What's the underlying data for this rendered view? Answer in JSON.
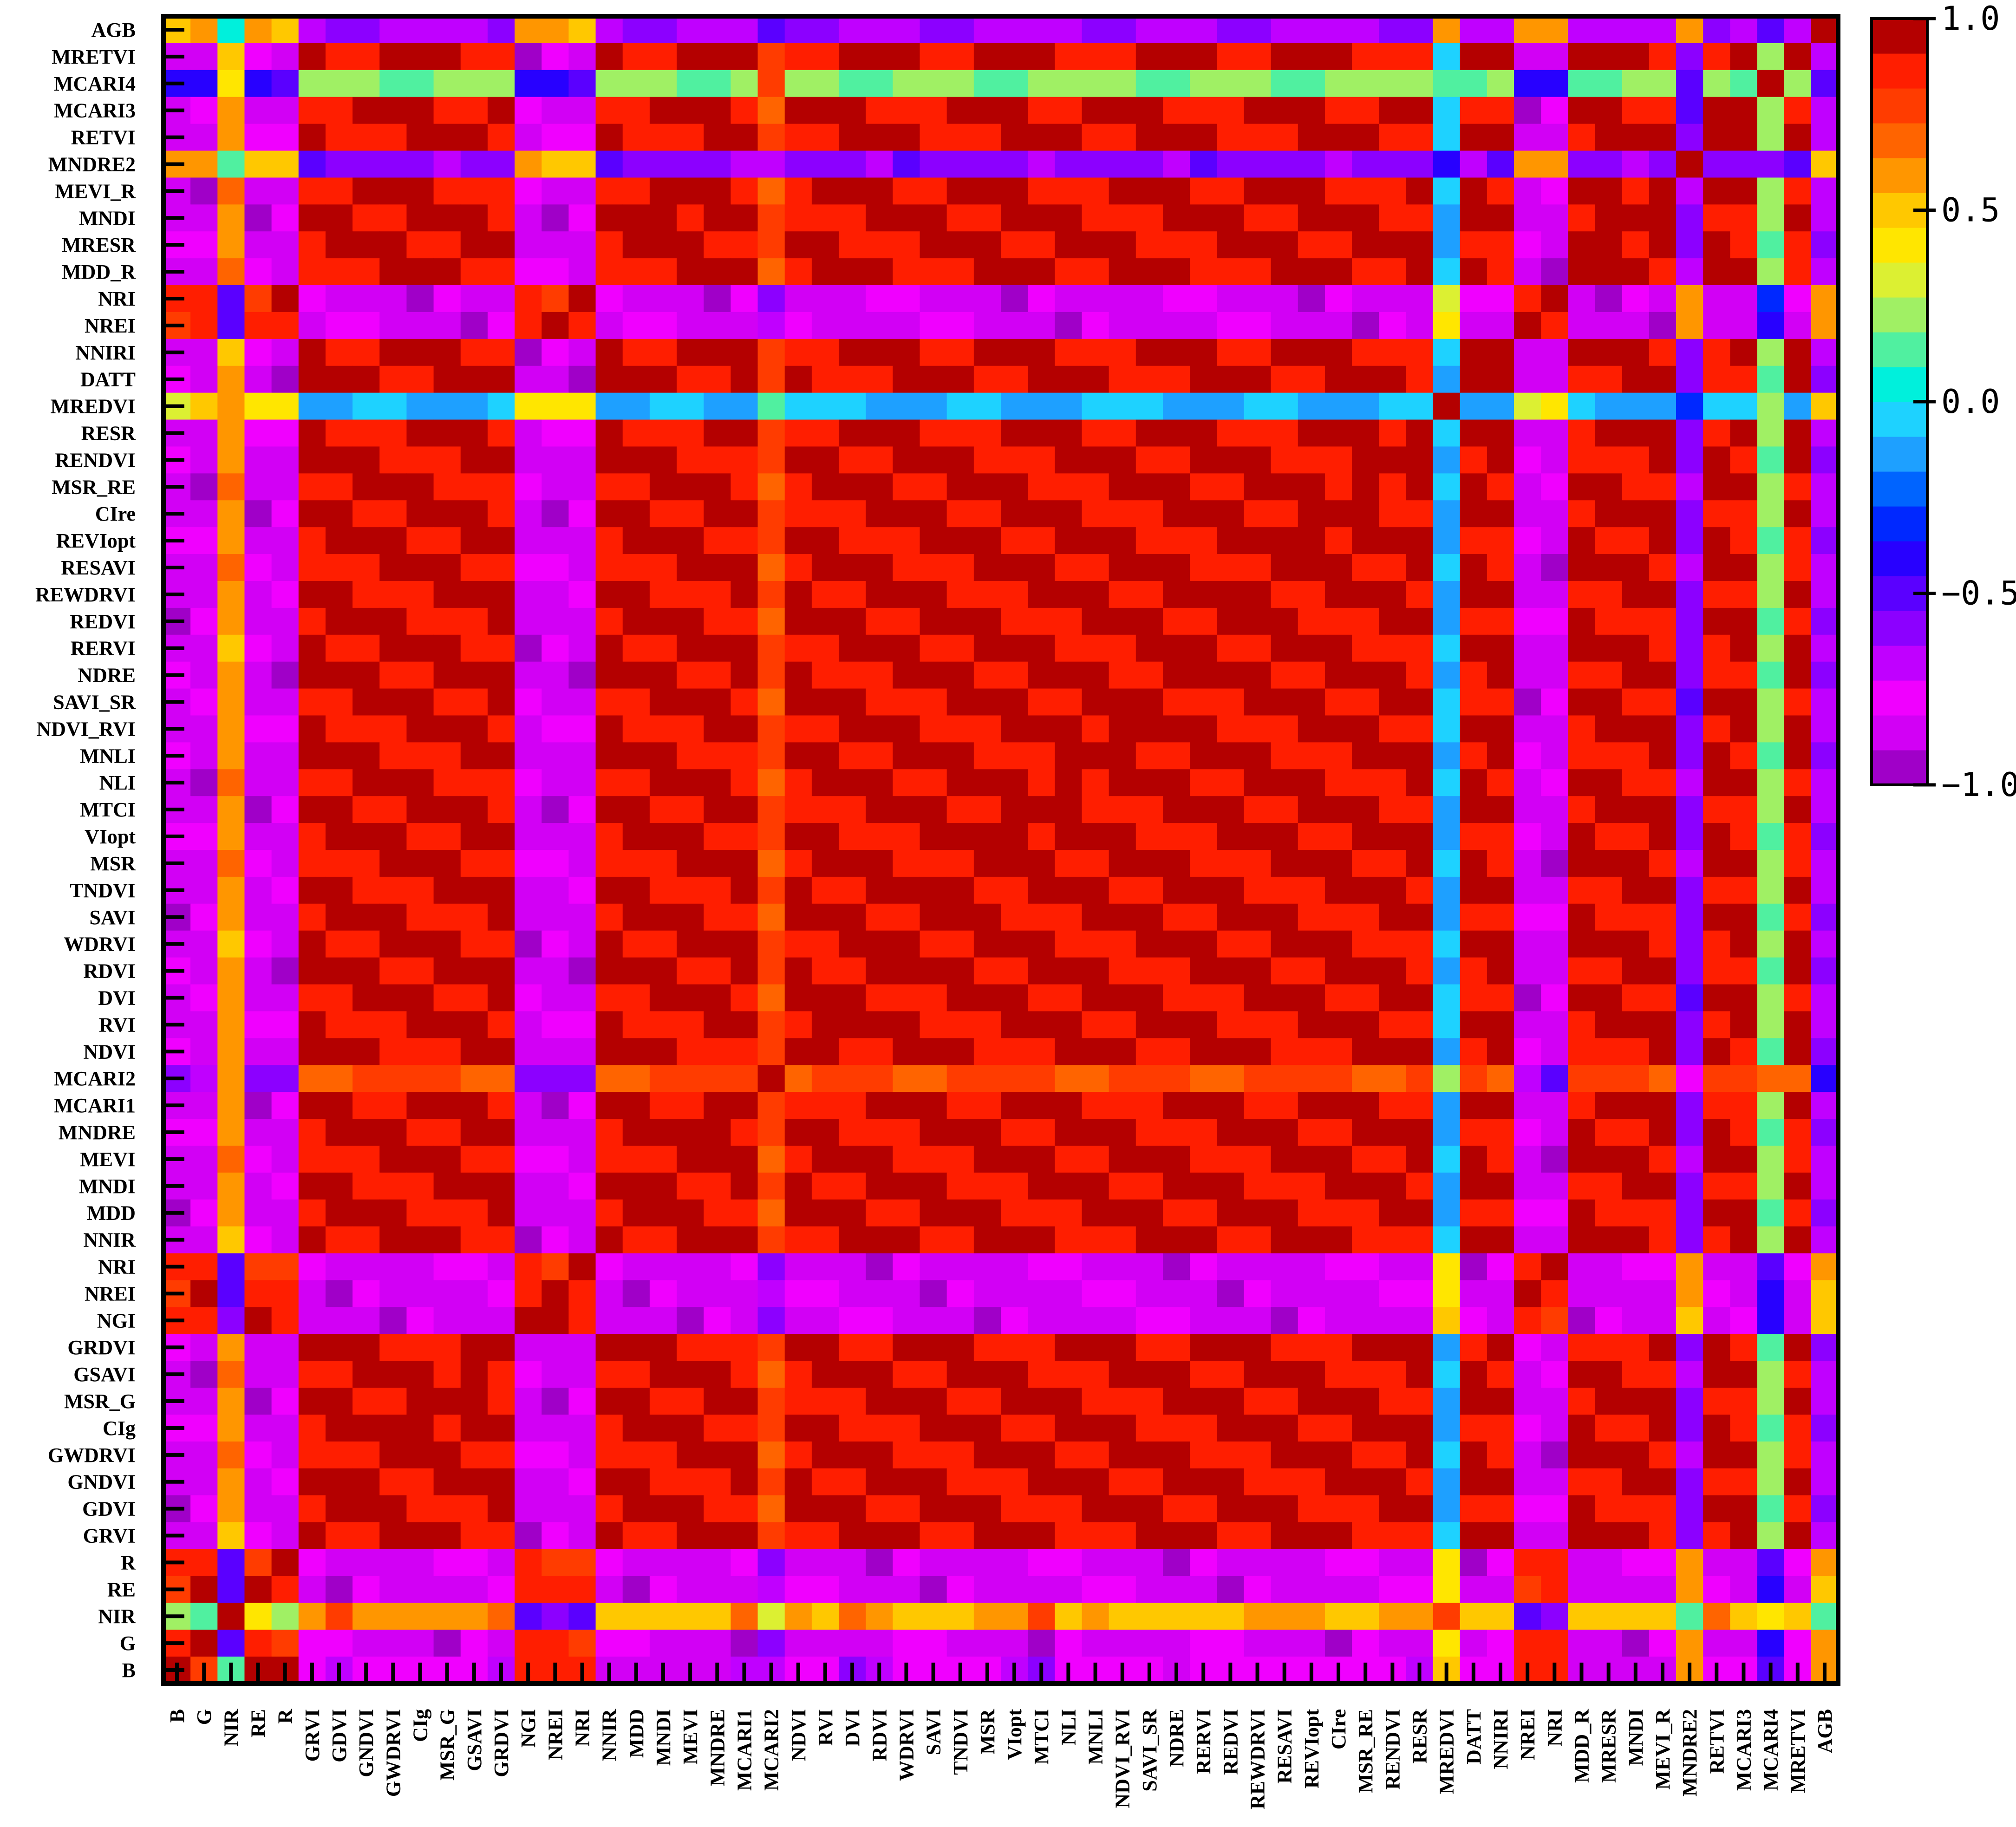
{
  "chart_data": {
    "type": "heatmap",
    "title": "",
    "xlabel": "",
    "ylabel": "",
    "row_labels": [
      "AGB",
      "MRETVI",
      "MCARI4",
      "MCARI3",
      "RETVI",
      "MNDRE2",
      "MEVI_R",
      "MNDI",
      "MRESR",
      "MDD_R",
      "NRI",
      "NREI",
      "NNIRI",
      "DATT",
      "MREDVI",
      "RESR",
      "RENDVI",
      "MSR_RE",
      "CIre",
      "REVIopt",
      "RESAVI",
      "REWDRVI",
      "REDVI",
      "RERVI",
      "NDRE",
      "SAVI_SR",
      "NDVI_RVI",
      "MNLI",
      "NLI",
      "MTCI",
      "VIopt",
      "MSR",
      "TNDVI",
      "SAVI",
      "WDRVI",
      "RDVI",
      "DVI",
      "RVI",
      "NDVI",
      "MCARI2",
      "MCARI1",
      "MNDRE",
      "MEVI",
      "MNDI",
      "MDD",
      "NNIR",
      "NRI",
      "NREI",
      "NGI",
      "GRDVI",
      "GSAVI",
      "MSR_G",
      "CIg",
      "GWDRVI",
      "GNDVI",
      "GDVI",
      "GRVI",
      "R",
      "RE",
      "NIR",
      "G",
      "B"
    ],
    "col_labels": [
      "B",
      "G",
      "NIR",
      "RE",
      "R",
      "GRVI",
      "GDVI",
      "GNDVI",
      "GWDRVI",
      "CIg",
      "MSR_G",
      "GSAVI",
      "GRDVI",
      "NGI",
      "NREI",
      "NRI",
      "NNIR",
      "MDD",
      "MNDI",
      "MEVI",
      "MNDRE",
      "MCARI1",
      "MCARI2",
      "NDVI",
      "RVI",
      "DVI",
      "RDVI",
      "WDRVI",
      "SAVI",
      "TNDVI",
      "MSR",
      "VIopt",
      "MTCI",
      "NLI",
      "MNLI",
      "NDVI_RVI",
      "SAVI_SR",
      "NDRE",
      "RERVI",
      "REDVI",
      "REWDRVI",
      "RESAVI",
      "REVIopt",
      "CIre",
      "MSR_RE",
      "RENDVI",
      "RESR",
      "MREDVI",
      "DATT",
      "NNIRI",
      "NREI",
      "NRI",
      "MDD_R",
      "MRESR",
      "MNDI",
      "MEVI_R",
      "MNDRE2",
      "RETVI",
      "MCARI3",
      "MCARI4",
      "MRETVI",
      "AGB"
    ],
    "rows": [
      {
        "label": "NIR",
        "values": [
          0.2,
          0.1,
          1.0,
          0.4,
          0.2,
          0.6,
          0.75,
          0.6,
          0.6,
          0.6,
          0.6,
          0.6,
          0.7,
          -0.5,
          -0.6,
          -0.5,
          0.5,
          0.5,
          0.5,
          0.5,
          0.5,
          0.7,
          0.3,
          0.6,
          0.5,
          0.7,
          0.6,
          0.5,
          0.5,
          0.5,
          0.6,
          0.6,
          0.75,
          0.5,
          0.6,
          0.5,
          0.5,
          0.5,
          0.5,
          0.5,
          0.55,
          0.55,
          0.55,
          0.5,
          0.5,
          0.55,
          0.6,
          0.75,
          0.5,
          0.5,
          -0.5,
          -0.6,
          0.5,
          0.5,
          0.5,
          0.5,
          0.1,
          0.7,
          0.5,
          0.4,
          0.5,
          0.1
        ]
      },
      {
        "label": "B",
        "values": [
          1.0,
          0.8,
          0.15,
          0.95,
          0.95,
          -0.8,
          -0.7,
          -0.8,
          -0.8,
          -0.8,
          -0.8,
          -0.8,
          -0.7,
          0.9,
          0.85,
          0.9,
          -0.85,
          -0.85,
          -0.85,
          -0.85,
          -0.85,
          -0.7,
          -0.7,
          -0.8,
          -0.8,
          -0.6,
          -0.7,
          -0.8,
          -0.8,
          -0.8,
          -0.8,
          -0.7,
          -0.6,
          -0.8,
          -0.8,
          -0.8,
          -0.8,
          -0.85,
          -0.8,
          -0.8,
          -0.8,
          -0.8,
          -0.8,
          -0.8,
          -0.8,
          -0.8,
          -0.7,
          0.5,
          -0.8,
          -0.8,
          0.9,
          0.9,
          -0.85,
          -0.85,
          -0.85,
          -0.85,
          0.6,
          -0.8,
          -0.8,
          -0.5,
          -0.8,
          0.55
        ]
      }
    ],
    "colorbar": {
      "min": -1.0,
      "max": 1.0,
      "ticks": [
        "1.0",
        "0.5",
        "0.0",
        "−0.5",
        "−1.0"
      ]
    },
    "grid": false,
    "legend": "colorbar-right"
  }
}
